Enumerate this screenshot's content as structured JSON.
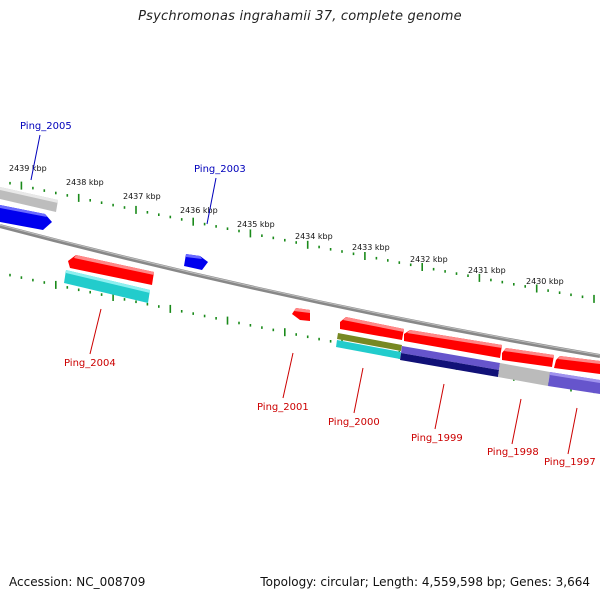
{
  "title": "Psychromonas ingrahamii 37, complete genome",
  "footer": {
    "accession": "Accession: NC_008709",
    "summary": "Topology: circular; Length: 4,559,598 bp; Genes: 3,664"
  },
  "colors": {
    "backbone": "#7a7a7a",
    "tick": "#1a8a1a",
    "gene_forward": "#ff0000",
    "label_forward": "#cc0000",
    "label_reverse": "#0000bb",
    "gene_reverse": "#0000ee",
    "feature_cyan": "#22cccc",
    "feature_olive": "#778822",
    "feature_gray": "#bbbbbb",
    "feature_violet": "#6655cc",
    "feature_navy": "#111177"
  },
  "kbp_labels": [
    "2439 kbp",
    "2438 kbp",
    "2437 kbp",
    "2436 kbp",
    "2435 kbp",
    "2434 kbp",
    "2433 kbp",
    "2432 kbp",
    "2431 kbp",
    "2430 kbp"
  ],
  "gene_labels": [
    "Ping_2005",
    "Ping_2003",
    "Ping_2004",
    "Ping_2001",
    "Ping_2000",
    "Ping_1999",
    "Ping_1998",
    "Ping_1997"
  ]
}
